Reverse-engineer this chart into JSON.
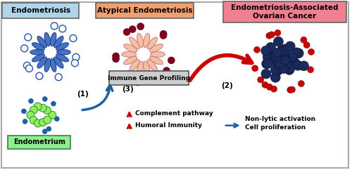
{
  "title1": "Endometriosis",
  "title2": "Atypical Endometriosis",
  "title3": "Endometriosis-Associated\nOvarian Cancer",
  "box1_color": "#aed6e8",
  "box2_color": "#f0a070",
  "box3_color": "#f08090",
  "immune_box_text": "Immune Gene Profiling",
  "label1": "(1)",
  "label2": "(2)",
  "label3": "(3)",
  "arrow1_color": "#1a5fa8",
  "arrow2_color": "#cc0000",
  "complement_text1": "Complement pathway",
  "complement_text2": "Humoral Immunity",
  "result_text1": "Non-lytic activation",
  "result_text2": "Cell proliferation",
  "blue_arrow_color": "#1a5fa8",
  "endometrium_label": "Endometrium",
  "endometrium_box_color": "#90ee90"
}
